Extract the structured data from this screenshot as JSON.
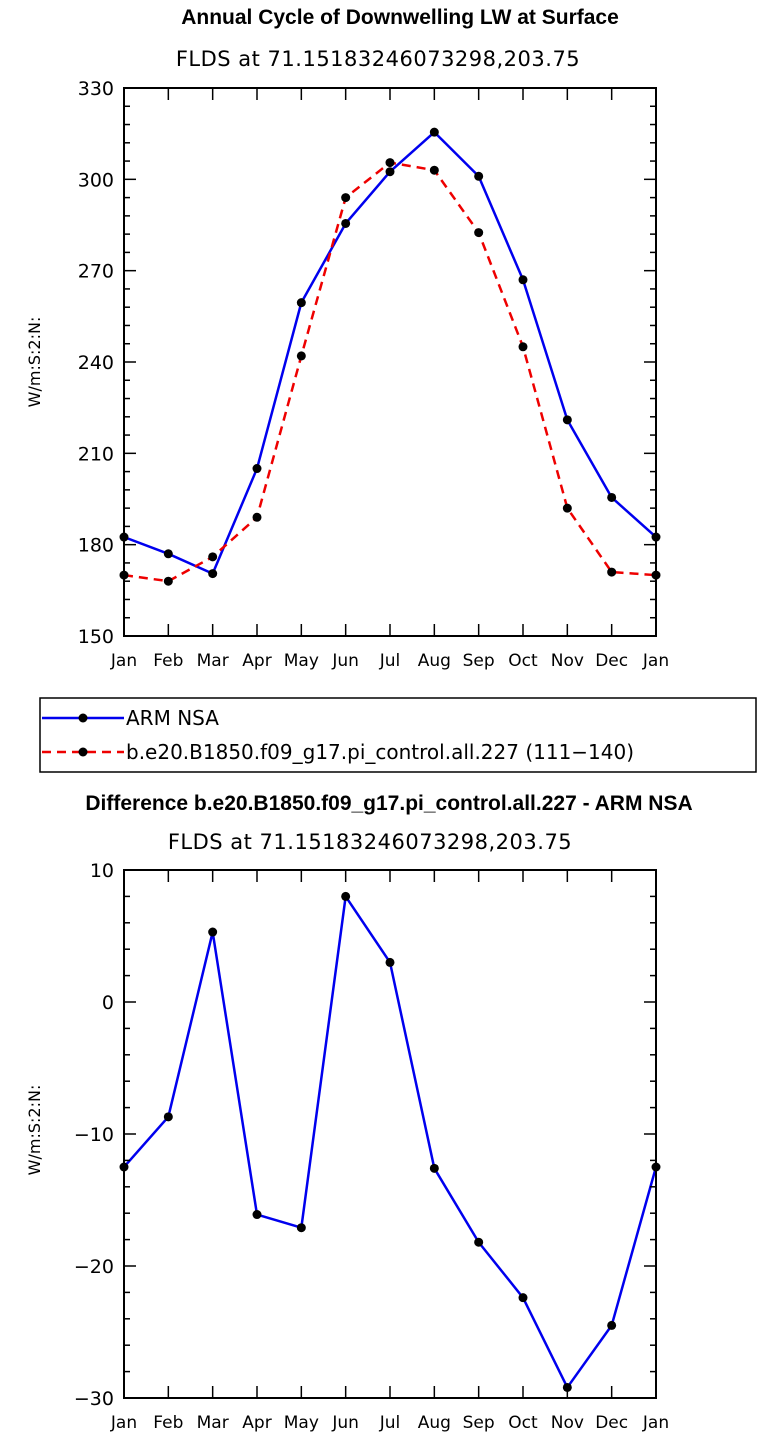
{
  "chart_data": [
    {
      "type": "line",
      "title": "Annual Cycle of Downwelling LW at Surface",
      "subtitle": "FLDS at 71.15183246073298,203.75",
      "ylabel": "W/m:S:2:N:",
      "xlabel": "",
      "categories": [
        "Jan",
        "Feb",
        "Mar",
        "Apr",
        "May",
        "Jun",
        "Jul",
        "Aug",
        "Sep",
        "Oct",
        "Nov",
        "Dec",
        "Jan"
      ],
      "ylim": [
        150,
        330
      ],
      "yticks": [
        150,
        180,
        210,
        240,
        270,
        300,
        330
      ],
      "series": [
        {
          "name": "ARM NSA",
          "color": "#0000ee",
          "dash": "solid",
          "values": [
            182.5,
            177,
            170.5,
            205,
            259.5,
            285.5,
            302.5,
            315.5,
            301,
            267,
            221,
            195.5,
            182.5
          ]
        },
        {
          "name": "b.e20.B1850.f09_g17.pi_control.all.227 (111−140)",
          "color": "#ee0000",
          "dash": "dashed",
          "values": [
            170,
            168,
            176,
            189,
            242,
            294,
            305.5,
            303,
            282.5,
            245,
            192,
            171,
            170
          ]
        }
      ],
      "legend_position": "below"
    },
    {
      "type": "line",
      "title": "Difference b.e20.B1850.f09_g17.pi_control.all.227 - ARM NSA",
      "subtitle": "FLDS at 71.15183246073298,203.75",
      "ylabel": "W/m:S:2:N:",
      "xlabel": "",
      "categories": [
        "Jan",
        "Feb",
        "Mar",
        "Apr",
        "May",
        "Jun",
        "Jul",
        "Aug",
        "Sep",
        "Oct",
        "Nov",
        "Dec",
        "Jan"
      ],
      "ylim": [
        -30,
        10
      ],
      "yticks": [
        -30,
        -20,
        -10,
        0,
        10
      ],
      "ytick_labels": [
        "−30",
        "−20",
        "−10",
        "0",
        "10"
      ],
      "series": [
        {
          "color": "#0000ee",
          "dash": "solid",
          "values": [
            -12.5,
            -8.7,
            5.3,
            -16.1,
            -17.1,
            8.0,
            3.0,
            -12.6,
            -18.2,
            -22.4,
            -29.2,
            -24.5,
            -12.5
          ]
        }
      ]
    }
  ]
}
